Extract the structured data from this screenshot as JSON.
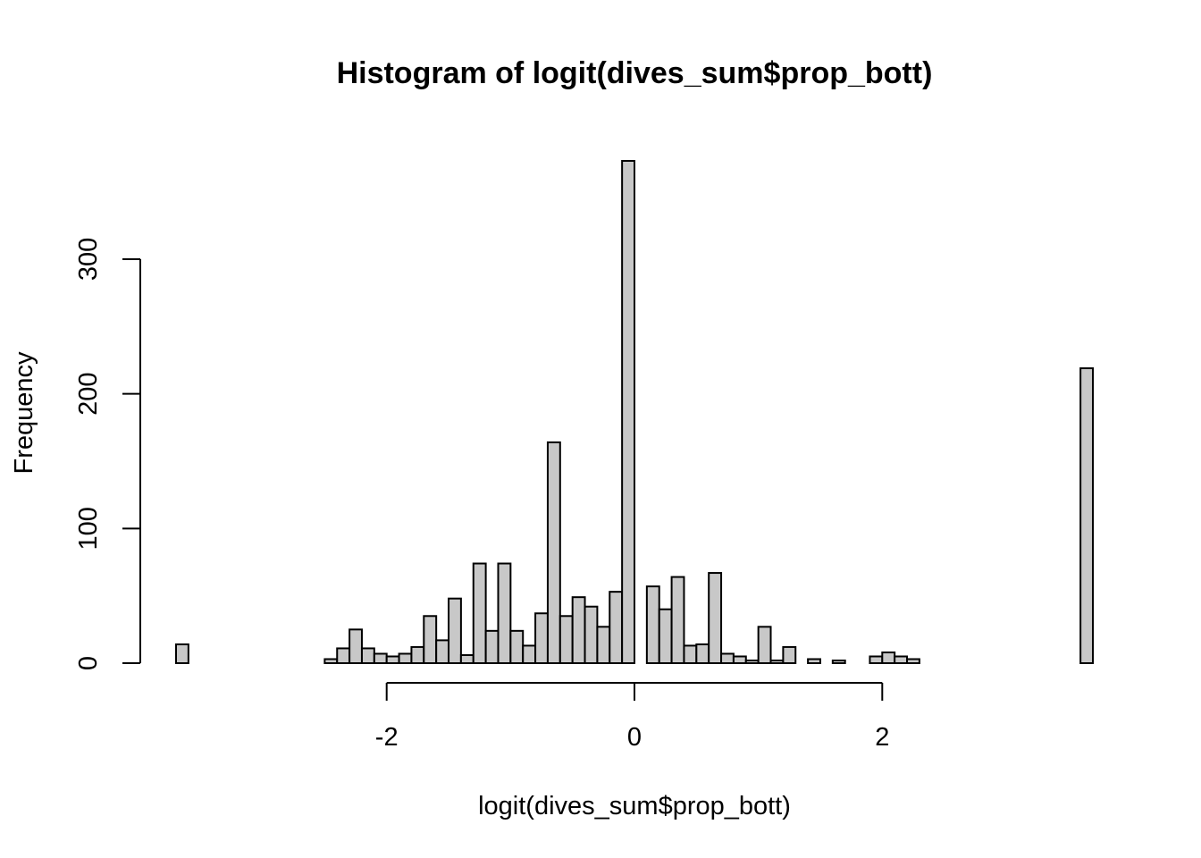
{
  "chart_data": {
    "type": "bar",
    "subtype": "histogram",
    "title": "Histogram of logit(dives_sum$prop_bott)",
    "xlabel": "logit(dives_sum$prop_bott)",
    "ylabel": "Frequency",
    "bin_width": 0.1,
    "bins_start": -3.7,
    "xlim": [
      -3.7,
      3.7
    ],
    "ylim": [
      0,
      373
    ],
    "x_ticks": [
      -2,
      0,
      2
    ],
    "x_tick_labels": [
      "-2",
      "0",
      "2"
    ],
    "y_ticks": [
      0,
      100,
      200,
      300
    ],
    "y_tick_labels": [
      "0",
      "100",
      "200",
      "300"
    ],
    "grid": false,
    "bar_fill": "#c8c8c8",
    "bar_stroke": "#000000",
    "values": [
      14,
      0,
      0,
      0,
      0,
      0,
      0,
      0,
      0,
      0,
      0,
      0,
      3,
      11,
      25,
      11,
      7,
      5,
      7,
      12,
      35,
      17,
      48,
      6,
      74,
      24,
      74,
      24,
      13,
      37,
      164,
      35,
      49,
      42,
      27,
      53,
      373,
      0,
      57,
      40,
      64,
      13,
      14,
      67,
      7,
      5,
      2,
      27,
      2,
      12,
      0,
      3,
      0,
      2,
      0,
      0,
      5,
      8,
      5,
      3,
      0,
      0,
      0,
      0,
      0,
      0,
      0,
      0,
      0,
      0,
      0,
      0,
      0,
      219
    ]
  }
}
